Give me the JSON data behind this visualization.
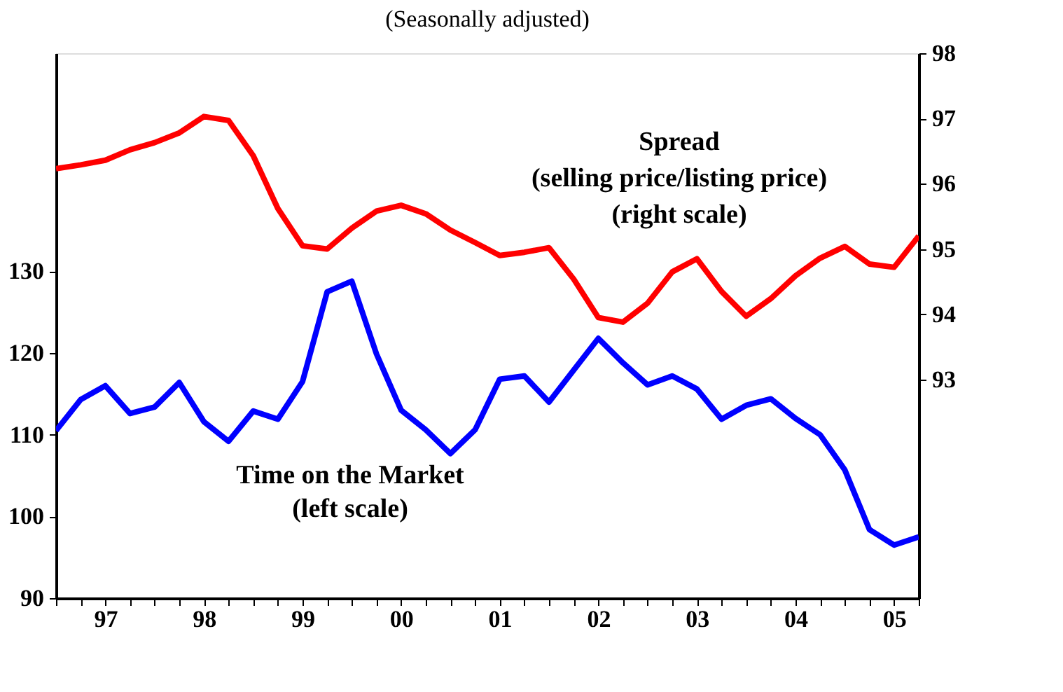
{
  "chart_data": {
    "type": "line",
    "title": "(Seasonally adjusted)",
    "x": [
      1996.5,
      1996.75,
      1997,
      1997.25,
      1997.5,
      1997.75,
      1998,
      1998.25,
      1998.5,
      1998.75,
      1999,
      1999.25,
      1999.5,
      1999.75,
      2000,
      2000.25,
      2000.5,
      2000.75,
      2001,
      2001.25,
      2001.5,
      2001.75,
      2002,
      2002.25,
      2002.5,
      2002.75,
      2003,
      2003.25,
      2003.5,
      2003.75,
      2004,
      2004.25,
      2004.5,
      2004.75,
      2005,
      2005.25
    ],
    "series": [
      {
        "name": null,
        "color": "#ff0000",
        "axis": "y2",
        "values": [
          96.23,
          96.29,
          96.36,
          96.52,
          96.63,
          96.78,
          97.03,
          96.97,
          96.43,
          95.62,
          95.05,
          95.0,
          95.32,
          95.58,
          95.67,
          95.54,
          95.29,
          95.1,
          94.9,
          94.95,
          95.02,
          94.54,
          93.95,
          93.88,
          94.17,
          94.65,
          94.85,
          94.35,
          93.97,
          94.24,
          94.59,
          94.86,
          95.04,
          94.77,
          94.72,
          95.2
        ]
      },
      {
        "name": null,
        "color": "#0000ff",
        "values": [
          110.5,
          114.3,
          116.0,
          112.6,
          113.4,
          116.4,
          111.6,
          109.2,
          112.9,
          111.9,
          116.5,
          127.5,
          128.8,
          119.9,
          113.0,
          110.6,
          107.7,
          110.6,
          116.8,
          117.2,
          114.0,
          117.9,
          121.8,
          118.8,
          116.1,
          117.2,
          115.6,
          111.9,
          113.6,
          114.4,
          112.0,
          110.0,
          105.7,
          98.4,
          96.5,
          97.5
        ]
      }
    ],
    "xlim": [
      1996.5,
      2005.25
    ],
    "xticks": [
      {
        "value": 1996.5,
        "label": null
      },
      {
        "value": 1996.75,
        "label": null
      },
      {
        "value": 1997,
        "label": "97"
      },
      {
        "value": 1997.25,
        "label": null
      },
      {
        "value": 1997.5,
        "label": null
      },
      {
        "value": 1997.75,
        "label": null
      },
      {
        "value": 1998,
        "label": "98"
      },
      {
        "value": 1998.25,
        "label": null
      },
      {
        "value": 1998.5,
        "label": null
      },
      {
        "value": 1998.75,
        "label": null
      },
      {
        "value": 1999,
        "label": "99"
      },
      {
        "value": 1999.25,
        "label": null
      },
      {
        "value": 1999.5,
        "label": null
      },
      {
        "value": 1999.75,
        "label": null
      },
      {
        "value": 2000,
        "label": "00"
      },
      {
        "value": 2000.25,
        "label": null
      },
      {
        "value": 2000.5,
        "label": null
      },
      {
        "value": 2000.75,
        "label": null
      },
      {
        "value": 2001,
        "label": "01"
      },
      {
        "value": 2001.25,
        "label": null
      },
      {
        "value": 2001.5,
        "label": null
      },
      {
        "value": 2001.75,
        "label": null
      },
      {
        "value": 2002,
        "label": "02"
      },
      {
        "value": 2002.25,
        "label": null
      },
      {
        "value": 2002.5,
        "label": null
      },
      {
        "value": 2002.75,
        "label": null
      },
      {
        "value": 2003,
        "label": "03"
      },
      {
        "value": 2003.25,
        "label": null
      },
      {
        "value": 2003.5,
        "label": null
      },
      {
        "value": 2003.75,
        "label": null
      },
      {
        "value": 2004,
        "label": "04"
      },
      {
        "value": 2004.25,
        "label": null
      },
      {
        "value": 2004.5,
        "label": null
      },
      {
        "value": 2004.75,
        "label": null
      },
      {
        "value": 2005,
        "label": "05"
      },
      {
        "value": 2005.25,
        "label": null
      }
    ],
    "ylim": [
      90,
      156.7
    ],
    "yticks": [
      90,
      100,
      110,
      120,
      130
    ],
    "y2lim": [
      89.65,
      98
    ],
    "y2ticks": [
      93,
      94,
      95,
      96,
      97,
      98
    ],
    "annotations": [
      "Spread",
      "(selling price/listing price)",
      "(right scale)",
      "Time on the Market",
      "(left scale)"
    ],
    "grid": false,
    "marker": "none",
    "line_style": "solid"
  }
}
